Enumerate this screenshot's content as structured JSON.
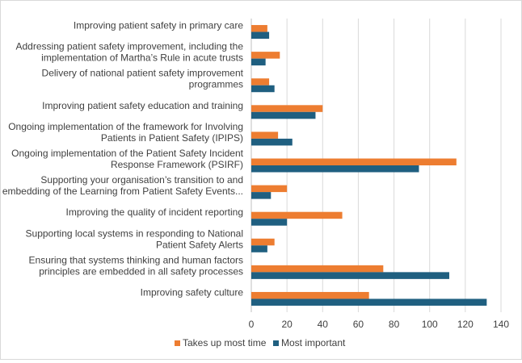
{
  "chart_data": {
    "type": "bar",
    "orientation": "horizontal",
    "categories": [
      [
        "Improving patient safety in primary care"
      ],
      [
        "Addressing patient safety improvement, including the",
        "implementation of Martha’s Rule in acute trusts"
      ],
      [
        "Delivery of national patient safety improvement",
        "programmes"
      ],
      [
        "Improving patient safety education and training"
      ],
      [
        "Ongoing implementation of the framework for Involving",
        "Patients in Patient Safety (IPIPS)"
      ],
      [
        "Ongoing implementation of the Patient Safety Incident",
        "Response Framework (PSIRF)"
      ],
      [
        "Supporting your organisation’s transition to and",
        "embedding of the Learning from Patient Safety Events..."
      ],
      [
        "Improving the quality of incident reporting"
      ],
      [
        "Supporting local systems in responding to National",
        "Patient Safety Alerts"
      ],
      [
        "Ensuring that systems thinking and human factors",
        "principles are embedded in all safety processes"
      ],
      [
        "Improving safety culture"
      ]
    ],
    "series": [
      {
        "name": "Takes up most time",
        "color": "#ed7d31",
        "values": [
          9,
          16,
          10,
          40,
          15,
          115,
          20,
          51,
          13,
          74,
          66
        ]
      },
      {
        "name": "Most important",
        "color": "#1f5f80",
        "values": [
          10,
          8,
          13,
          36,
          23,
          94,
          11,
          20,
          9,
          111,
          132
        ]
      }
    ],
    "x_ticks": [
      "0",
      "20",
      "40",
      "60",
      "80",
      "100",
      "120",
      "140"
    ],
    "xlim": [
      0,
      140
    ],
    "grid": true,
    "legend": "bottom"
  }
}
